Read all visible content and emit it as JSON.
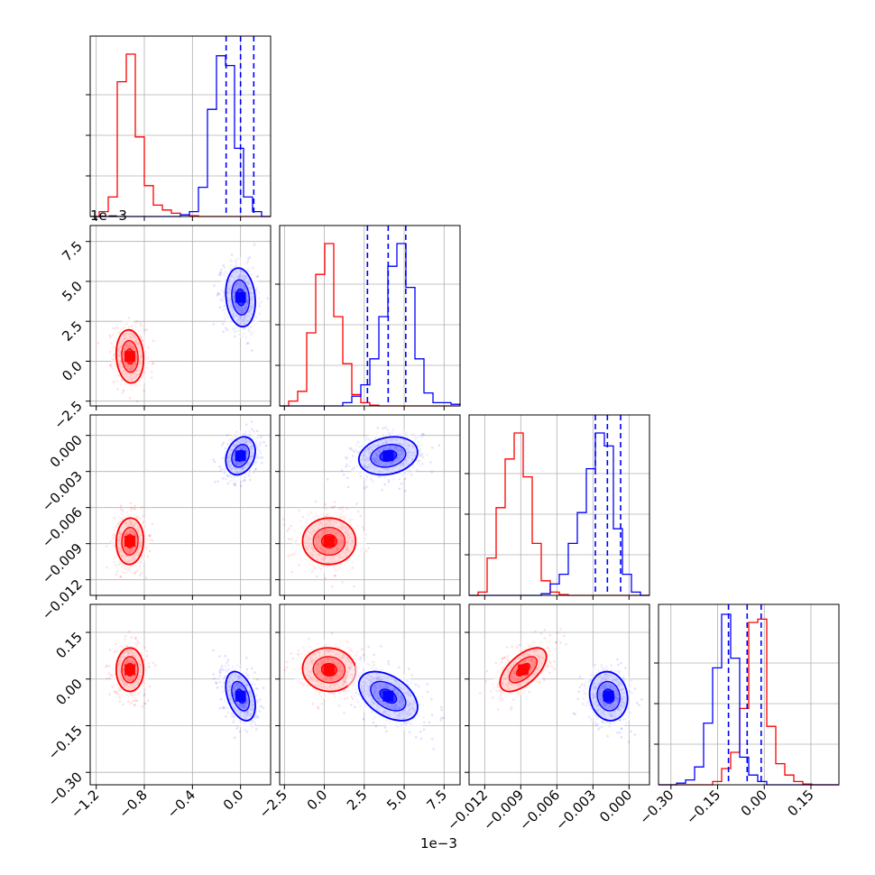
{
  "figure": {
    "colors": {
      "red": "#ff0000",
      "blue": "#0000ff",
      "grid": "#b0b0b0",
      "axis": "#000000"
    },
    "offset_text_d1": "1e−3",
    "offset_text_xbottom": "1e−3"
  },
  "chart_data": {
    "type": "corner",
    "grid": true,
    "parameters": [
      {
        "index": 0,
        "range": [
          -1.25,
          0.25
        ],
        "scale_exponent": "1e-3",
        "ticks": [
          -1.2,
          -0.8,
          -0.4,
          0.0
        ],
        "tick_labels": [
          "−1.2",
          "−0.8",
          "−0.4",
          "0.0"
        ]
      },
      {
        "index": 1,
        "range": [
          -2.8,
          8.5
        ],
        "scale_exponent": "1e-3",
        "ticks": [
          -2.5,
          0.0,
          2.5,
          5.0,
          7.5
        ],
        "tick_labels": [
          "−2.5",
          "0.0",
          "2.5",
          "5.0",
          "7.5"
        ]
      },
      {
        "index": 2,
        "range": [
          -0.0133,
          0.0017
        ],
        "ticks": [
          -0.012,
          -0.009,
          -0.006,
          -0.003,
          0.0
        ],
        "tick_labels": [
          "−0.012",
          "−0.009",
          "−0.006",
          "−0.003",
          "0.000"
        ]
      },
      {
        "index": 3,
        "range": [
          -0.34,
          0.24
        ],
        "ticks": [
          -0.3,
          -0.15,
          0.0,
          0.15
        ],
        "tick_labels": [
          "−0.30",
          "−0.15",
          "0.00",
          "0.15"
        ]
      }
    ],
    "series": [
      {
        "color": "red",
        "means": [
          -0.92,
          0.3,
          -0.0088,
          0.03
        ],
        "sigmas": [
          0.065,
          0.95,
          0.0011,
          0.04
        ],
        "correlations": {
          "0-1": -0.1,
          "0-2": 0.05,
          "0-3": 0.0,
          "1-2": 0.0,
          "1-3": -0.05,
          "2-3": 0.6
        },
        "histograms": [
          {
            "edges": [
              -1.25,
              0.25
            ],
            "counts": [
              0,
              0.03,
              0.12,
              0.83,
              1.0,
              0.49,
              0.19,
              0.07,
              0.04,
              0.02,
              0.01,
              0.005,
              0,
              0,
              0,
              0,
              0,
              0,
              0,
              0
            ]
          },
          {
            "edges": [
              -2.8,
              8.5
            ],
            "counts": [
              0,
              0.03,
              0.09,
              0.45,
              0.81,
              1.0,
              0.55,
              0.26,
              0.07,
              0.02,
              0.005,
              0,
              0,
              0,
              0,
              0,
              0,
              0,
              0,
              0
            ]
          },
          {
            "edges": [
              -0.0133,
              0.0017
            ],
            "counts": [
              0,
              0.02,
              0.23,
              0.54,
              0.84,
              1.0,
              0.73,
              0.32,
              0.09,
              0.02,
              0.005,
              0,
              0,
              0,
              0,
              0,
              0,
              0,
              0,
              0
            ]
          },
          {
            "edges": [
              -0.34,
              0.24
            ],
            "counts": [
              0,
              0,
              0,
              0,
              0,
              0,
              0.02,
              0.1,
              0.2,
              0.47,
              1.0,
              1.02,
              0.36,
              0.13,
              0.06,
              0.02,
              0.005,
              0,
              0,
              0
            ]
          }
        ]
      },
      {
        "color": "blue",
        "means": [
          0.0,
          4.0,
          -0.0017,
          -0.055
        ],
        "sigmas": [
          0.07,
          1.05,
          0.0009,
          0.045
        ],
        "correlations": {
          "0-1": -0.15,
          "0-2": 0.25,
          "0-3": -0.4,
          "1-2": 0.2,
          "1-3": -0.45,
          "2-3": -0.1
        },
        "quantile_lines": [
          [
            -0.12,
            0.0,
            0.11
          ],
          [
            2.7,
            4.0,
            5.1
          ],
          [
            -0.0028,
            -0.0018,
            -0.0007
          ],
          [
            -0.115,
            -0.055,
            -0.01
          ]
        ],
        "histograms": [
          {
            "edges": [
              -1.25,
              0.25
            ],
            "counts": [
              0,
              0,
              0,
              0,
              0,
              0,
              0,
              0,
              0,
              0,
              0.01,
              0.03,
              0.18,
              0.66,
              0.99,
              0.93,
              0.42,
              0.12,
              0.03,
              0
            ]
          },
          {
            "edges": [
              -2.8,
              8.5
            ],
            "counts": [
              0,
              0,
              0,
              0,
              0,
              0,
              0,
              0.02,
              0.06,
              0.13,
              0.29,
              0.55,
              0.86,
              1.0,
              0.73,
              0.29,
              0.08,
              0.02,
              0.02,
              0.01
            ]
          },
          {
            "edges": [
              -0.0133,
              0.0017
            ],
            "counts": [
              0,
              0,
              0,
              0,
              0,
              0,
              0,
              0,
              0.01,
              0.07,
              0.13,
              0.32,
              0.51,
              0.78,
              1.0,
              0.92,
              0.41,
              0.13,
              0.02,
              0
            ]
          },
          {
            "edges": [
              -0.34,
              0.24
            ],
            "counts": [
              0,
              0,
              0.01,
              0.03,
              0.11,
              0.38,
              0.72,
              1.05,
              0.78,
              0.17,
              0.06,
              0.02,
              0,
              0,
              0,
              0,
              0,
              0,
              0,
              0
            ]
          }
        ]
      }
    ]
  }
}
